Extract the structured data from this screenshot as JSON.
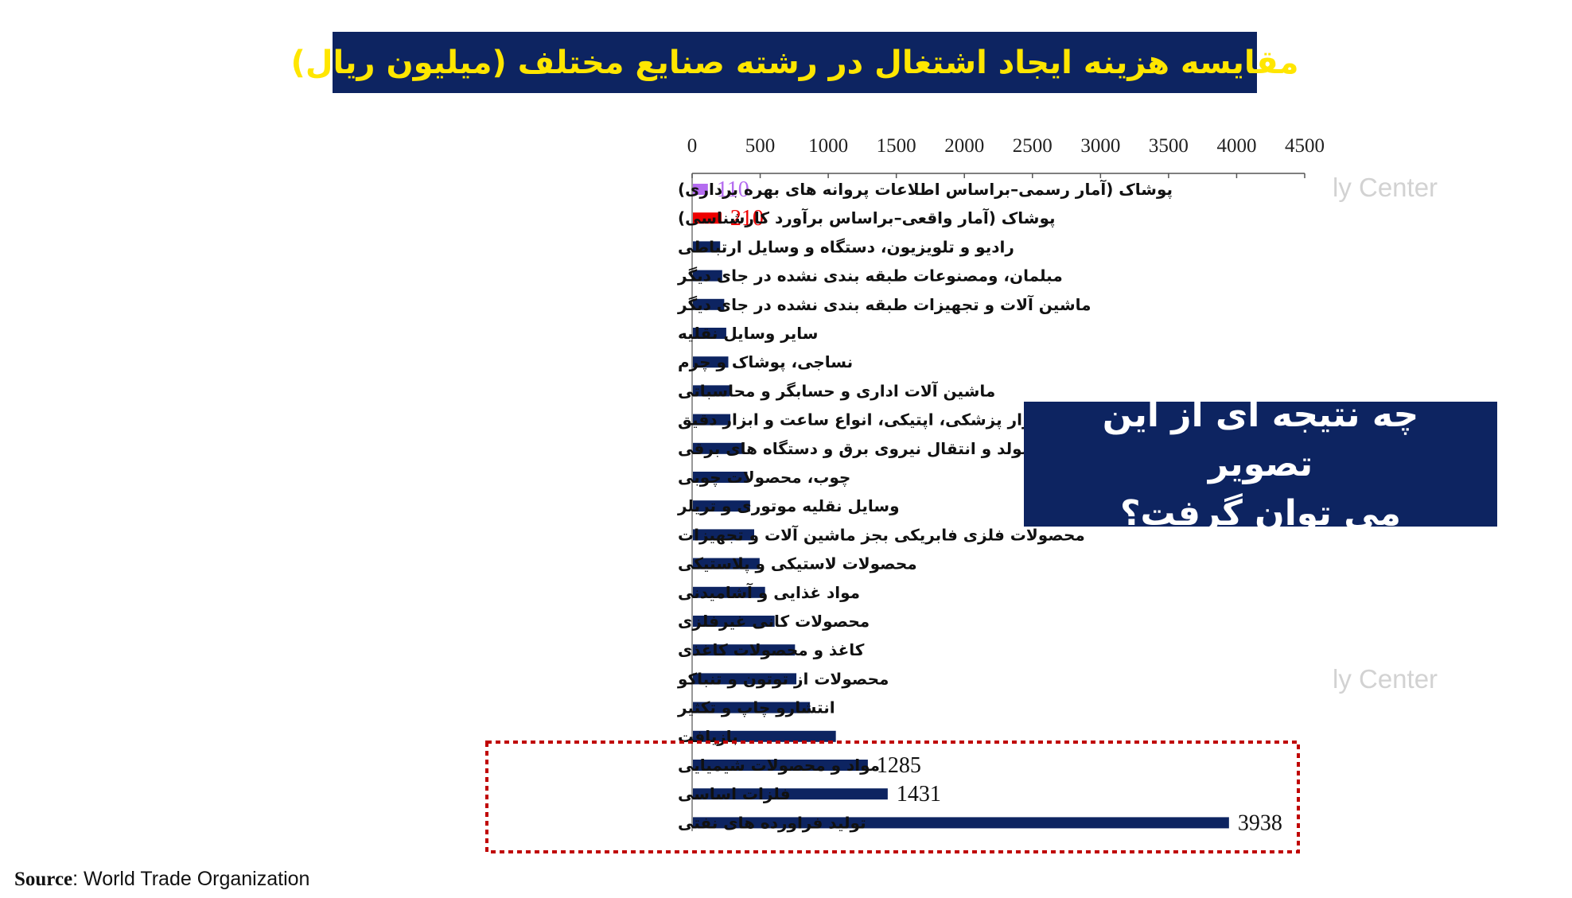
{
  "title": "مقایسه هزینه ایجاد اشتغال در رشته صنایع مختلف (میلیون ریال)",
  "question": {
    "line1": "چه نتیجه ای از این تصویر",
    "line2": "می توان گرفت؟"
  },
  "watermark": "ly Center",
  "source": {
    "label": "Source",
    "text": ": World Trade Organization"
  },
  "colors": {
    "title_bg": "#0d2461",
    "title_text": "#ffe600",
    "bar_default": "#0d2461",
    "bar_official": "#b46cf0",
    "bar_actual": "#ee0000",
    "highlight_border": "#c00000"
  },
  "chart_data": {
    "type": "bar",
    "orientation": "horizontal",
    "title": "مقایسه هزینه ایجاد اشتغال در رشته صنایع مختلف (میلیون ریال)",
    "xlim": [
      0,
      4500
    ],
    "xticks": [
      0,
      500,
      1000,
      1500,
      2000,
      2500,
      3000,
      3500,
      4000,
      4500
    ],
    "xtick_labels": [
      "0",
      "500",
      "1000",
      "1500",
      "2000",
      "2500",
      "3000",
      "3500",
      "4000",
      "4500"
    ],
    "axis_position": "top",
    "grid": false,
    "highlighted_categories": [
      "مواد و محصولات شیمیایی",
      "فلزات اساسی",
      "تولید فراورده های نفتی"
    ],
    "bars": [
      {
        "category": "پوشاک (آمار رسمی–براساس اطلاعات پروانه های بهره برداری)",
        "value": 110,
        "label": "110",
        "color": "#b46cf0"
      },
      {
        "category": "پوشاک (آمار واقعی–براساس برآورد کارشناسی)",
        "value": 210,
        "label": "210",
        "color": "#ee0000"
      },
      {
        "category": "رادیو و تلویزیون، دستگاه و وسایل ارتباطی",
        "value": 200
      },
      {
        "category": "مبلمان، ومصنوعات طبقه بندی نشده در جای دیگر",
        "value": 215
      },
      {
        "category": "ماشین آلات و تجهیزات طبقه بندی نشده در جای دیگر",
        "value": 230
      },
      {
        "category": "سایر وسایل نقلیه",
        "value": 245
      },
      {
        "category": "نساجی، پوشاک و چرم",
        "value": 260
      },
      {
        "category": "ماشین آلات اداری و حسابگر و محاسباتی",
        "value": 270
      },
      {
        "category": "ابزار پزشکی، اپتیکی، انواع ساعت و ابزار دقیق",
        "value": 275
      },
      {
        "category": "ماشین آلات مولد و انتقال نیروی برق  و دستگاه های برقی",
        "value": 370
      },
      {
        "category": "چوب، محصولات چوبی",
        "value": 400
      },
      {
        "category": "وسایل نقلیه موتوری و تریلر",
        "value": 420
      },
      {
        "category": "محصولات فلزی فابریکی بجز ماشین آلات و تجهیزات",
        "value": 450
      },
      {
        "category": "محصولات لاستیکی و پلاستیکی",
        "value": 490
      },
      {
        "category": "مواد غذایی و آشامیدنی",
        "value": 530
      },
      {
        "category": "محصولات کانی غیرفلزی",
        "value": 600
      },
      {
        "category": "کاغذ و محصولات کاغذی",
        "value": 750
      },
      {
        "category": "محصولات از توتون و تنباکو",
        "value": 760
      },
      {
        "category": "انتشارو چاپ و تکثیر",
        "value": 860
      },
      {
        "category": "بازیافت",
        "value": 1050
      },
      {
        "category": "مواد و محصولات شیمیایی",
        "value": 1285,
        "label": "1285"
      },
      {
        "category": "فلزات اساسی",
        "value": 1431,
        "label": "1431"
      },
      {
        "category": "تولید فراورده های نفتی",
        "value": 3938,
        "label": "3938"
      }
    ]
  }
}
